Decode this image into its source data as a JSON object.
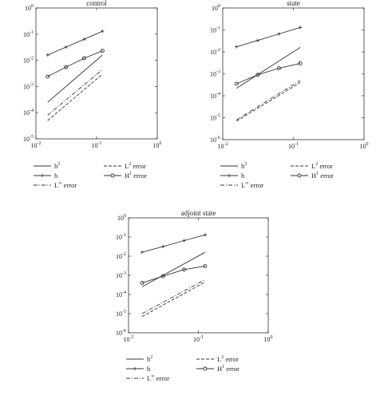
{
  "chart_data": [
    {
      "type": "line",
      "title": "control",
      "xscale": "log",
      "yscale": "log",
      "xlim": [
        0.01,
        1
      ],
      "ylim": [
        1e-05,
        1
      ],
      "xticks": [
        "10^-2",
        "10^-1",
        "10^0"
      ],
      "yticks": [
        "10^-5",
        "10^-4",
        "10^-3",
        "10^-2",
        "10^-1",
        "10^0"
      ],
      "grid": false,
      "series": [
        {
          "name": "h^2",
          "style": "solid",
          "x": [
            0.015625,
            0.125
          ],
          "y": [
            0.00025,
            0.016
          ]
        },
        {
          "name": "h",
          "style": "solid-plus",
          "x": [
            0.015625,
            0.03125,
            0.0625,
            0.125
          ],
          "y": [
            0.016,
            0.032,
            0.064,
            0.13
          ]
        },
        {
          "name": "L^∞ error",
          "style": "dashdot",
          "x": [
            0.015625,
            0.125
          ],
          "y": [
            8e-05,
            0.0045
          ]
        },
        {
          "name": "L^2 error",
          "style": "dashed",
          "x": [
            0.015625,
            0.125
          ],
          "y": [
            5e-05,
            0.003
          ]
        },
        {
          "name": "H^1 error",
          "style": "solid-circle",
          "x": [
            0.015625,
            0.03125,
            0.0625,
            0.125
          ],
          "y": [
            0.0024,
            0.0055,
            0.012,
            0.023
          ]
        }
      ]
    },
    {
      "type": "line",
      "title": "state",
      "xscale": "log",
      "yscale": "log",
      "xlim": [
        0.01,
        1
      ],
      "ylim": [
        1e-06,
        1
      ],
      "xticks": [
        "10^-2",
        "10^-1",
        "10^0"
      ],
      "yticks": [
        "10^-6",
        "10^-5",
        "10^-4",
        "10^-3",
        "10^-2",
        "10^-1",
        "10^0"
      ],
      "grid": false,
      "series": [
        {
          "name": "h^2",
          "style": "solid",
          "x": [
            0.015625,
            0.125
          ],
          "y": [
            0.00022,
            0.016
          ]
        },
        {
          "name": "h",
          "style": "solid-plus",
          "x": [
            0.015625,
            0.03125,
            0.0625,
            0.125
          ],
          "y": [
            0.017,
            0.033,
            0.066,
            0.13
          ]
        },
        {
          "name": "L^∞ error",
          "style": "dashdot",
          "x": [
            0.015625,
            0.125
          ],
          "y": [
            8e-06,
            0.0005
          ]
        },
        {
          "name": "L^2 error",
          "style": "dashed",
          "x": [
            0.015625,
            0.125
          ],
          "y": [
            7e-06,
            0.0004
          ]
        },
        {
          "name": "H^1 error",
          "style": "solid-circle",
          "x": [
            0.015625,
            0.03125,
            0.0625,
            0.125
          ],
          "y": [
            0.00035,
            0.0009,
            0.0018,
            0.003
          ]
        }
      ]
    },
    {
      "type": "line",
      "title": "adjoint state",
      "xscale": "log",
      "yscale": "log",
      "xlim": [
        0.01,
        1
      ],
      "ylim": [
        1e-06,
        1
      ],
      "xticks": [
        "10^-2",
        "10^-1",
        "10^0"
      ],
      "yticks": [
        "10^-6",
        "10^-5",
        "10^-4",
        "10^-3",
        "10^-2",
        "10^-1",
        "10^0"
      ],
      "grid": false,
      "series": [
        {
          "name": "h^2",
          "style": "solid",
          "x": [
            0.015625,
            0.125
          ],
          "y": [
            0.00025,
            0.016
          ]
        },
        {
          "name": "h",
          "style": "solid-plus",
          "x": [
            0.015625,
            0.03125,
            0.0625,
            0.125
          ],
          "y": [
            0.016,
            0.032,
            0.065,
            0.13
          ]
        },
        {
          "name": "L^∞ error",
          "style": "dashdot",
          "x": [
            0.015625,
            0.125
          ],
          "y": [
            1e-05,
            0.0006
          ]
        },
        {
          "name": "L^2 error",
          "style": "dashed",
          "x": [
            0.015625,
            0.125
          ],
          "y": [
            7e-06,
            0.00045
          ]
        },
        {
          "name": "H^1 error",
          "style": "solid-circle",
          "x": [
            0.015625,
            0.03125,
            0.0625,
            0.125
          ],
          "y": [
            0.0004,
            0.0009,
            0.002,
            0.003
          ]
        }
      ]
    }
  ]
}
